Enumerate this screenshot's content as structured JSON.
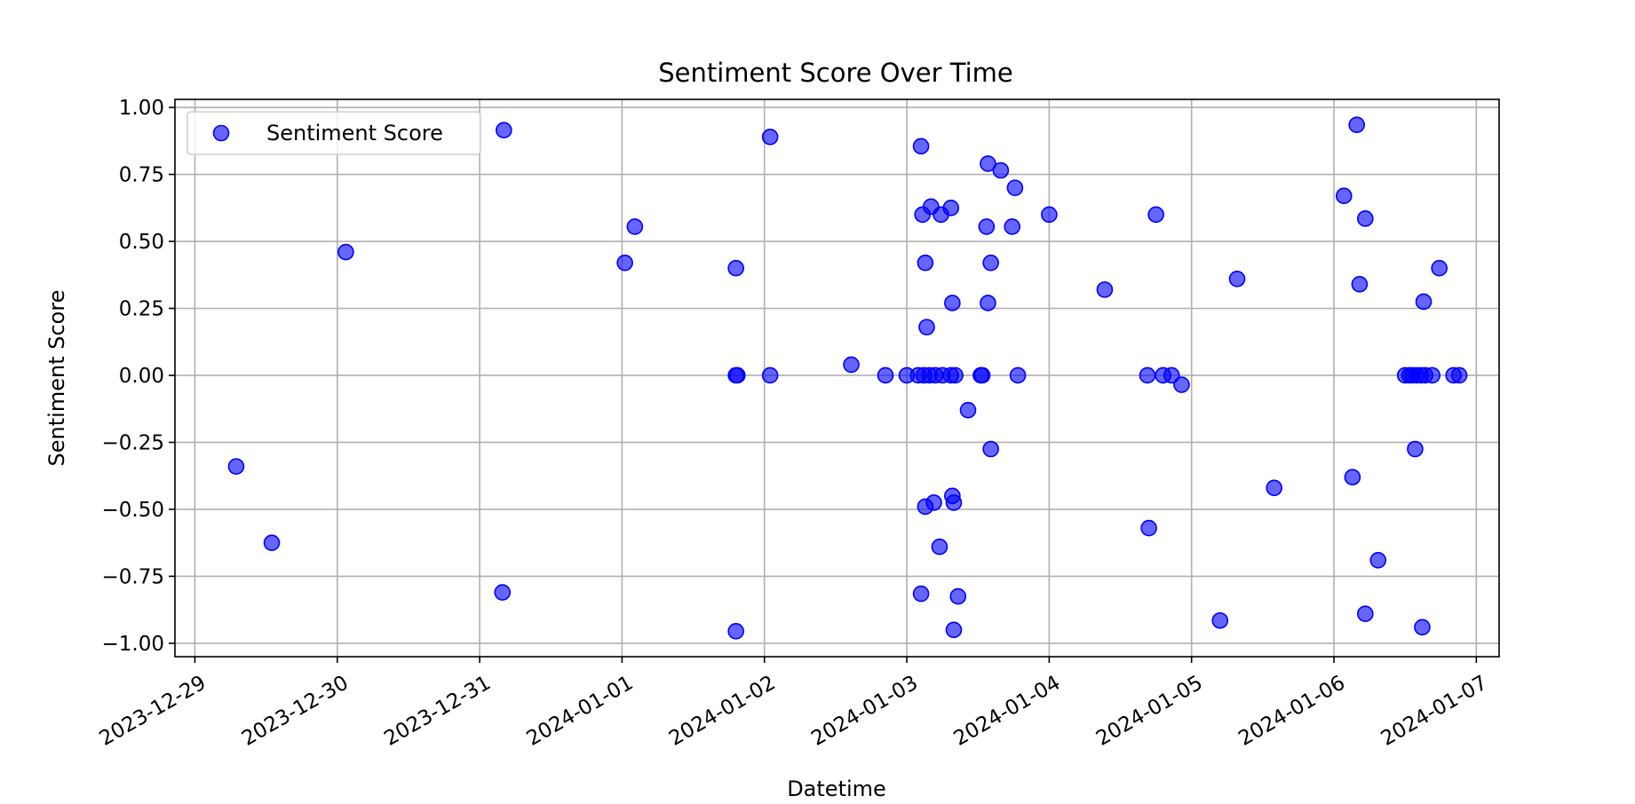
{
  "chart_data": {
    "type": "scatter",
    "title": "Sentiment Score Over Time",
    "xlabel": "Datetime",
    "ylabel": "Sentiment Score",
    "x_tick_labels": [
      "2023-12-29",
      "2023-12-30",
      "2023-12-31",
      "2024-01-01",
      "2024-01-02",
      "2024-01-03",
      "2024-01-04",
      "2024-01-05",
      "2024-01-06",
      "2024-01-07"
    ],
    "y_tick_labels": [
      "1.00",
      "0.75",
      "0.50",
      "0.25",
      "0.00",
      "−0.25",
      "−0.50",
      "−0.75",
      "−1.00"
    ],
    "xlim_days": [
      -0.14,
      9.16
    ],
    "ylim": [
      -1.05,
      1.03
    ],
    "grid": true,
    "legend": {
      "label": "Sentiment Score",
      "position": "upper-left"
    },
    "color": "#0000ff",
    "series": [
      {
        "name": "Sentiment Score",
        "x_unit": "days since 2023-12-29",
        "points": [
          [
            0.29,
            -0.34
          ],
          [
            0.54,
            -0.625
          ],
          [
            1.06,
            0.46
          ],
          [
            2.16,
            -0.81
          ],
          [
            2.17,
            0.915
          ],
          [
            3.02,
            0.42
          ],
          [
            3.09,
            0.555
          ],
          [
            3.8,
            0.4
          ],
          [
            3.8,
            0.0
          ],
          [
            3.81,
            0.0
          ],
          [
            3.8,
            -0.955
          ],
          [
            4.04,
            0.89
          ],
          [
            4.04,
            0.0
          ],
          [
            4.61,
            0.04
          ],
          [
            4.85,
            0.0
          ],
          [
            5.0,
            0.0
          ],
          [
            5.1,
            0.855
          ],
          [
            5.11,
            0.6
          ],
          [
            5.13,
            0.42
          ],
          [
            5.14,
            0.18
          ],
          [
            5.08,
            0.0
          ],
          [
            5.12,
            0.0
          ],
          [
            5.16,
            0.0
          ],
          [
            5.2,
            0.0
          ],
          [
            5.25,
            0.0
          ],
          [
            5.1,
            -0.815
          ],
          [
            5.13,
            -0.49
          ],
          [
            5.19,
            -0.475
          ],
          [
            5.23,
            -0.64
          ],
          [
            5.17,
            0.63
          ],
          [
            5.24,
            0.6
          ],
          [
            5.31,
            0.625
          ],
          [
            5.32,
            0.27
          ],
          [
            5.31,
            0.0
          ],
          [
            5.34,
            0.0
          ],
          [
            5.32,
            -0.45
          ],
          [
            5.33,
            -0.475
          ],
          [
            5.33,
            -0.95
          ],
          [
            5.36,
            -0.825
          ],
          [
            5.43,
            -0.13
          ],
          [
            5.52,
            0.0
          ],
          [
            5.53,
            0.0
          ],
          [
            5.57,
            0.79
          ],
          [
            5.56,
            0.555
          ],
          [
            5.57,
            0.27
          ],
          [
            5.59,
            0.42
          ],
          [
            5.59,
            -0.275
          ],
          [
            5.66,
            0.765
          ],
          [
            5.74,
            0.555
          ],
          [
            5.76,
            0.7
          ],
          [
            5.78,
            0.0
          ],
          [
            6.0,
            0.6
          ],
          [
            6.39,
            0.32
          ],
          [
            6.69,
            0.0
          ],
          [
            6.7,
            -0.57
          ],
          [
            6.75,
            0.6
          ],
          [
            6.8,
            0.0
          ],
          [
            6.86,
            0.0
          ],
          [
            6.93,
            -0.035
          ],
          [
            7.2,
            -0.915
          ],
          [
            7.32,
            0.36
          ],
          [
            7.58,
            -0.42
          ],
          [
            8.07,
            0.67
          ],
          [
            8.13,
            -0.38
          ],
          [
            8.16,
            0.935
          ],
          [
            8.18,
            0.34
          ],
          [
            8.22,
            0.585
          ],
          [
            8.22,
            -0.89
          ],
          [
            8.31,
            -0.69
          ],
          [
            8.5,
            0.0
          ],
          [
            8.53,
            0.0
          ],
          [
            8.55,
            0.0
          ],
          [
            8.58,
            0.0
          ],
          [
            8.61,
            0.0
          ],
          [
            8.64,
            0.0
          ],
          [
            8.69,
            0.0
          ],
          [
            8.57,
            -0.275
          ],
          [
            8.62,
            -0.94
          ],
          [
            8.63,
            0.275
          ],
          [
            8.74,
            0.4
          ],
          [
            8.84,
            0.0
          ],
          [
            8.88,
            0.0
          ]
        ]
      }
    ]
  }
}
